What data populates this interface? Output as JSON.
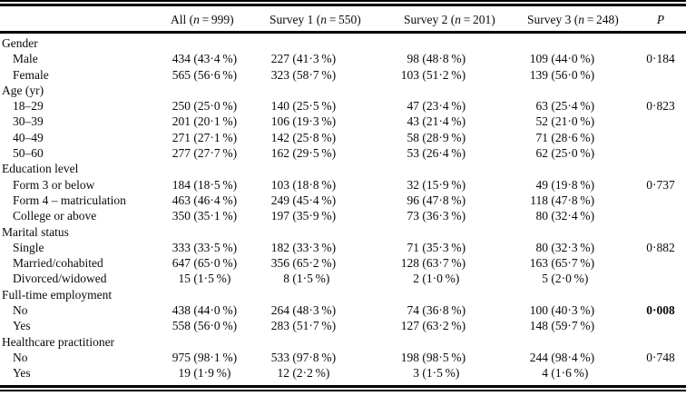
{
  "table": {
    "n_label": "n",
    "p_header": "P",
    "columns": [
      {
        "label": "All",
        "n": "999"
      },
      {
        "label": "Survey 1",
        "n": "550"
      },
      {
        "label": "Survey 2",
        "n": "201"
      },
      {
        "label": "Survey 3",
        "n": "248"
      }
    ],
    "percent_sign": "%",
    "rows": [
      {
        "type": "group",
        "label": "Gender"
      },
      {
        "type": "item",
        "label": "Male",
        "cells": [
          [
            "434",
            "43·4"
          ],
          [
            "227",
            "41·3"
          ],
          [
            "98",
            "48·8"
          ],
          [
            "109",
            "44·0"
          ]
        ],
        "p": "0·184"
      },
      {
        "type": "item",
        "label": "Female",
        "cells": [
          [
            "565",
            "56·6"
          ],
          [
            "323",
            "58·7"
          ],
          [
            "103",
            "51·2"
          ],
          [
            "139",
            "56·0"
          ]
        ]
      },
      {
        "type": "group",
        "label": "Age (yr)"
      },
      {
        "type": "item",
        "label": "18–29",
        "cells": [
          [
            "250",
            "25·0"
          ],
          [
            "140",
            "25·5"
          ],
          [
            "47",
            "23·4"
          ],
          [
            "63",
            "25·4"
          ]
        ],
        "p": "0·823"
      },
      {
        "type": "item",
        "label": "30–39",
        "cells": [
          [
            "201",
            "20·1"
          ],
          [
            "106",
            "19·3"
          ],
          [
            "43",
            "21·4"
          ],
          [
            "52",
            "21·0"
          ]
        ]
      },
      {
        "type": "item",
        "label": "40–49",
        "cells": [
          [
            "271",
            "27·1"
          ],
          [
            "142",
            "25·8"
          ],
          [
            "58",
            "28·9"
          ],
          [
            "71",
            "28·6"
          ]
        ]
      },
      {
        "type": "item",
        "label": "50–60",
        "cells": [
          [
            "277",
            "27·7"
          ],
          [
            "162",
            "29·5"
          ],
          [
            "53",
            "26·4"
          ],
          [
            "62",
            "25·0"
          ]
        ]
      },
      {
        "type": "group",
        "label": "Education level"
      },
      {
        "type": "item",
        "label": "Form 3 or below",
        "cells": [
          [
            "184",
            "18·5"
          ],
          [
            "103",
            "18·8"
          ],
          [
            "32",
            "15·9"
          ],
          [
            "49",
            "19·8"
          ]
        ],
        "p": "0·737"
      },
      {
        "type": "item",
        "label": "Form 4 – matriculation",
        "cells": [
          [
            "463",
            "46·4"
          ],
          [
            "249",
            "45·4"
          ],
          [
            "96",
            "47·8"
          ],
          [
            "118",
            "47·8"
          ]
        ]
      },
      {
        "type": "item",
        "label": "College or above",
        "cells": [
          [
            "350",
            "35·1"
          ],
          [
            "197",
            "35·9"
          ],
          [
            "73",
            "36·3"
          ],
          [
            "80",
            "32·4"
          ]
        ]
      },
      {
        "type": "group",
        "label": "Marital status"
      },
      {
        "type": "item",
        "label": "Single",
        "cells": [
          [
            "333",
            "33·5"
          ],
          [
            "182",
            "33·3"
          ],
          [
            "71",
            "35·3"
          ],
          [
            "80",
            "32·3"
          ]
        ],
        "p": "0·882"
      },
      {
        "type": "item",
        "label": "Married/cohabited",
        "cells": [
          [
            "647",
            "65·0"
          ],
          [
            "356",
            "65·2"
          ],
          [
            "128",
            "63·7"
          ],
          [
            "163",
            "65·7"
          ]
        ]
      },
      {
        "type": "item",
        "label": "Divorced/widowed",
        "cells": [
          [
            "15",
            "1·5"
          ],
          [
            "8",
            "1·5"
          ],
          [
            "2",
            "1·0"
          ],
          [
            "5",
            "2·0"
          ]
        ]
      },
      {
        "type": "group",
        "label": "Full-time employment"
      },
      {
        "type": "item",
        "label": "No",
        "cells": [
          [
            "438",
            "44·0"
          ],
          [
            "264",
            "48·3"
          ],
          [
            "74",
            "36·8"
          ],
          [
            "100",
            "40·3"
          ]
        ],
        "p": "0·008",
        "p_bold": true
      },
      {
        "type": "item",
        "label": "Yes",
        "cells": [
          [
            "558",
            "56·0"
          ],
          [
            "283",
            "51·7"
          ],
          [
            "127",
            "63·2"
          ],
          [
            "148",
            "59·7"
          ]
        ]
      },
      {
        "type": "group",
        "label": "Healthcare practitioner"
      },
      {
        "type": "item",
        "label": "No",
        "cells": [
          [
            "975",
            "98·1"
          ],
          [
            "533",
            "97·8"
          ],
          [
            "198",
            "98·5"
          ],
          [
            "244",
            "98·4"
          ]
        ],
        "p": "0·748"
      },
      {
        "type": "item",
        "label": "Yes",
        "cells": [
          [
            "19",
            "1·9"
          ],
          [
            "12",
            "2·2"
          ],
          [
            "3",
            "1·5"
          ],
          [
            "4",
            "1·6"
          ]
        ]
      }
    ]
  }
}
